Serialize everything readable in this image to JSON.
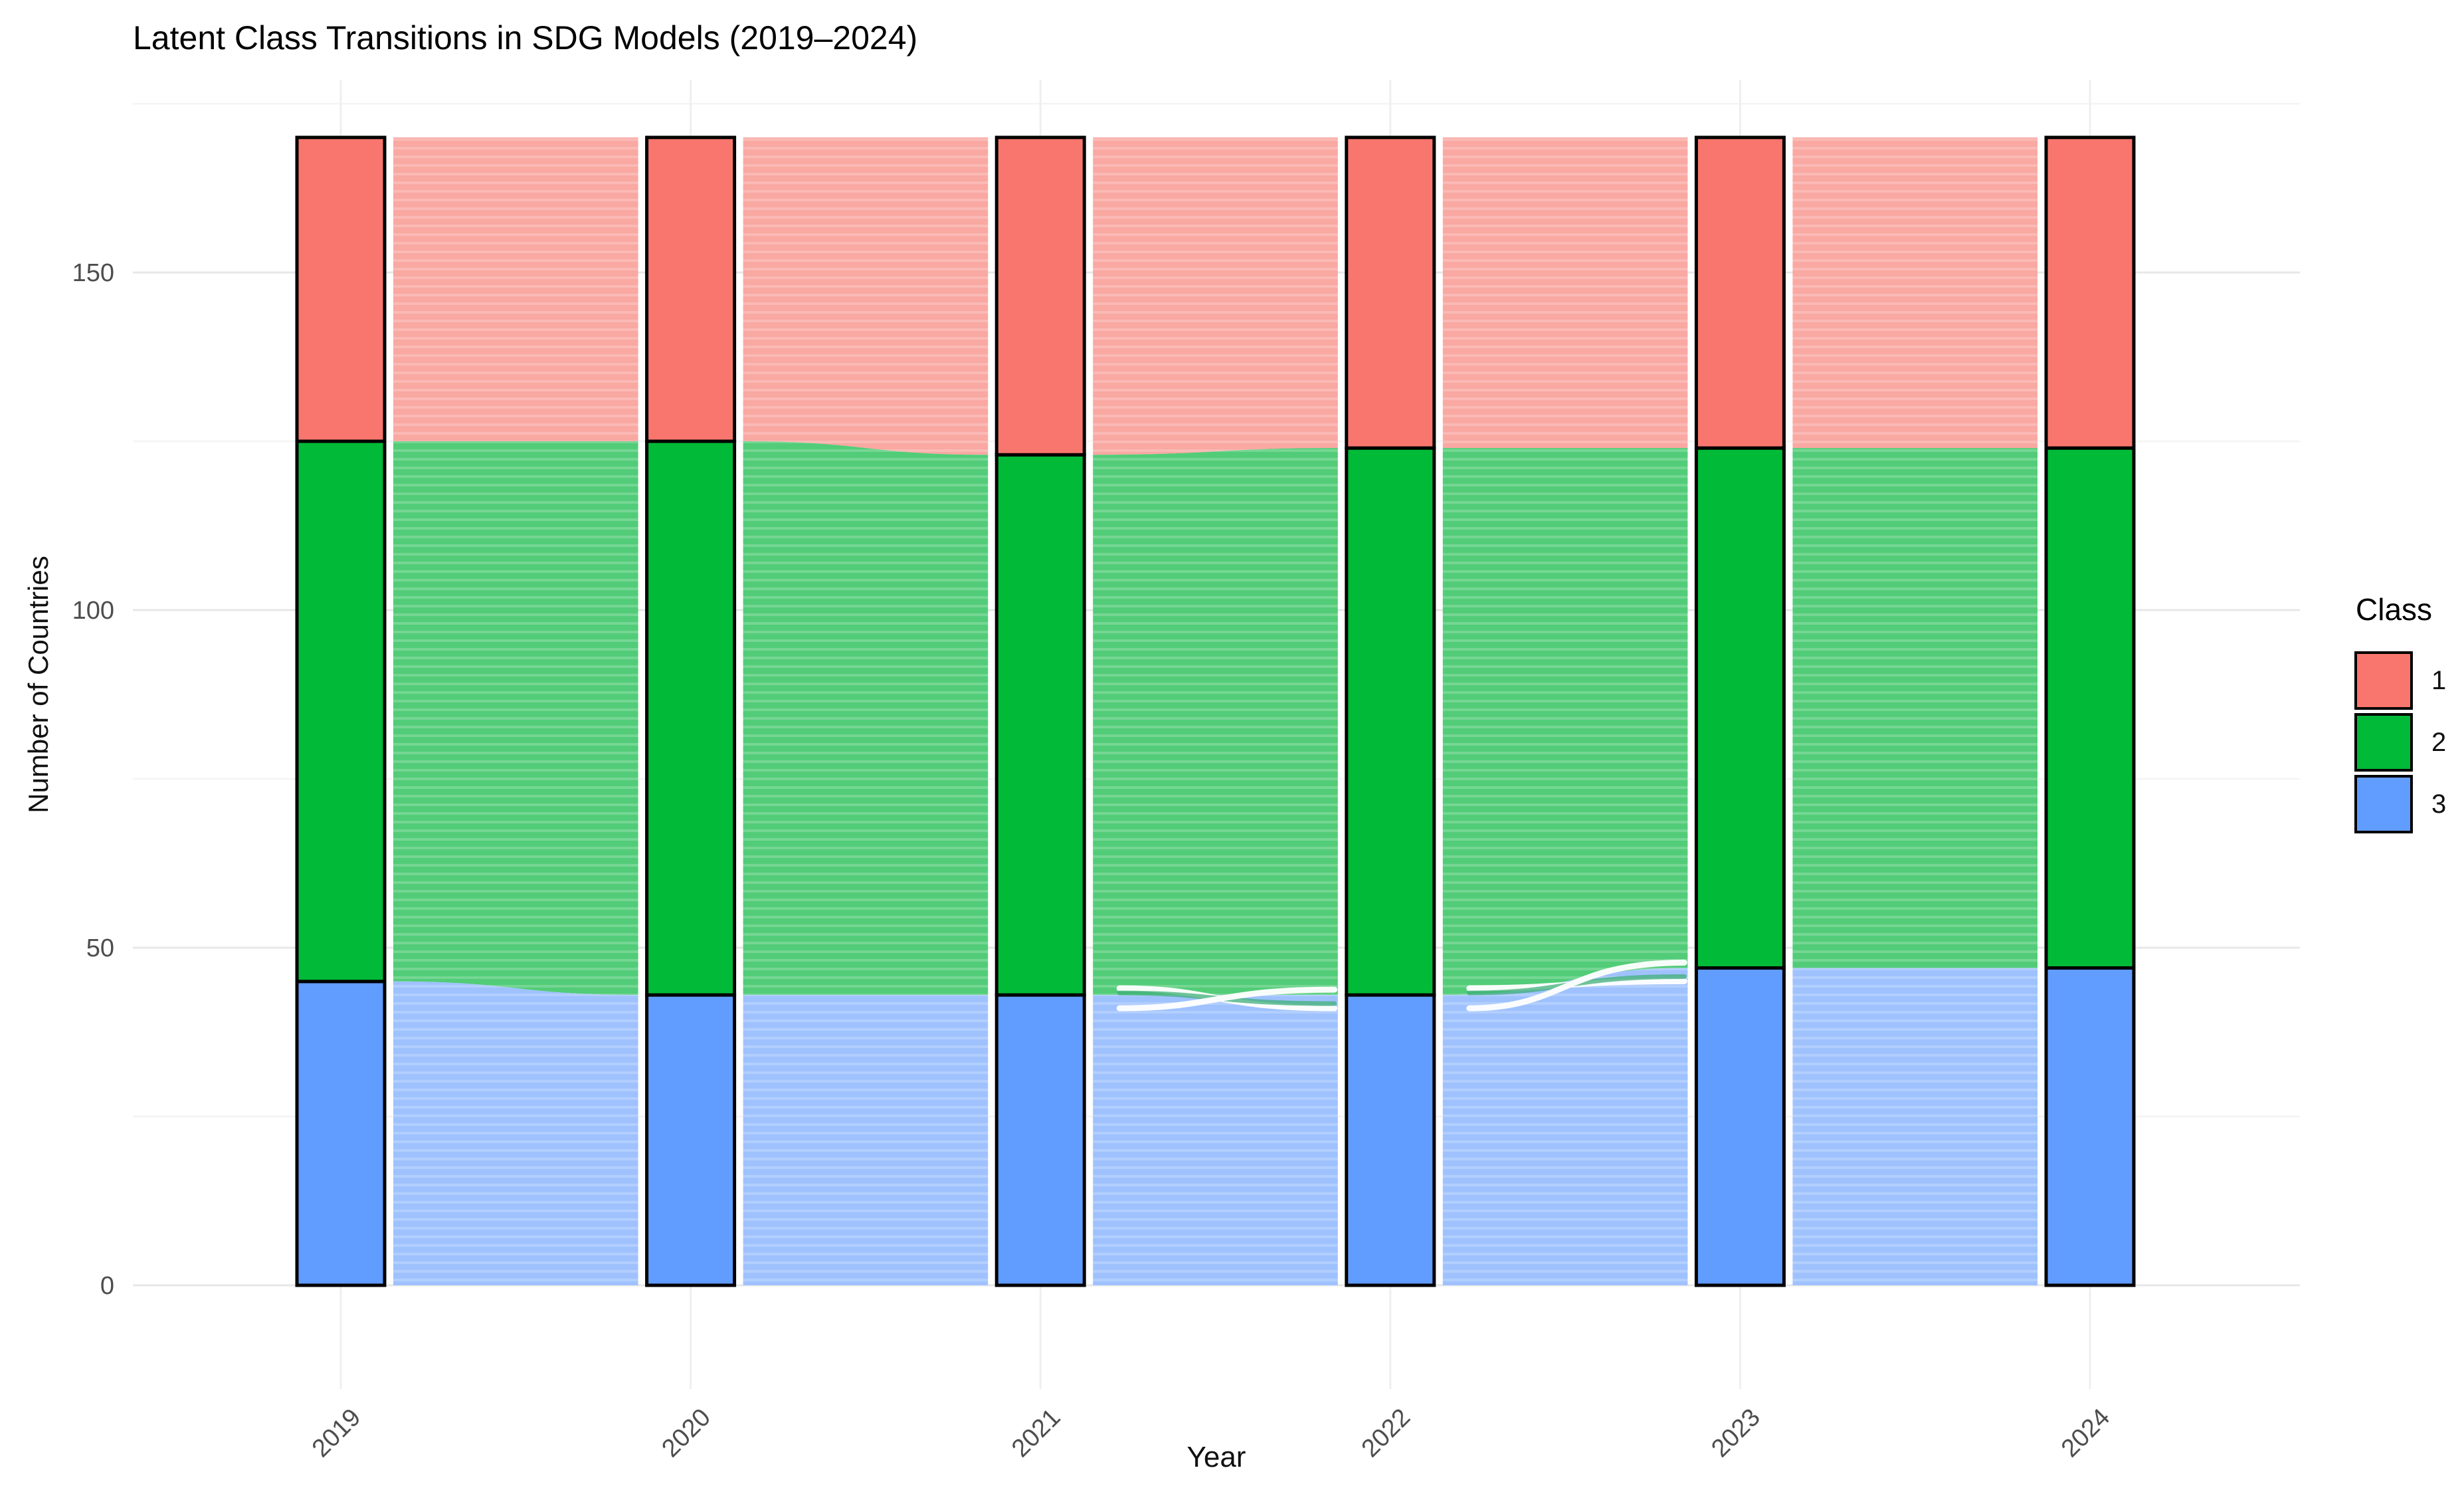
{
  "title": "Latent Class Transitions in SDG Models (2019–2024)",
  "axes": {
    "x_label": "Year",
    "y_label": "Number of Countries",
    "y_major_ticks": [
      0,
      50,
      100,
      150
    ],
    "y_minor_ticks": [
      25,
      75,
      125,
      175
    ]
  },
  "legend": {
    "title": "Class",
    "entries": [
      {
        "label": "1",
        "color": "#F8766D"
      },
      {
        "label": "2",
        "color": "#00BA38"
      },
      {
        "label": "3",
        "color": "#619CFF"
      }
    ]
  },
  "chart_data": {
    "type": "alluvial-stacked-bar",
    "title": "Latent Class Transitions in SDG Models (2019–2024)",
    "xlabel": "Year",
    "ylabel": "Number of Countries",
    "categories": [
      "2019",
      "2020",
      "2021",
      "2022",
      "2023",
      "2024"
    ],
    "total_per_year": [
      170,
      170,
      170,
      170,
      170,
      170
    ],
    "series": [
      {
        "name": "Class 1",
        "legend_label": "1",
        "color": "#F8766D",
        "flow_color": "#F9A8A2",
        "values": [
          45,
          45,
          47,
          46,
          46,
          46
        ]
      },
      {
        "name": "Class 2",
        "legend_label": "2",
        "color": "#00BA38",
        "flow_color": "#52CC78",
        "values": [
          80,
          82,
          80,
          81,
          77,
          77
        ]
      },
      {
        "name": "Class 3",
        "legend_label": "3",
        "color": "#619CFF",
        "flow_color": "#9FC2FE",
        "values": [
          45,
          43,
          43,
          43,
          47,
          47
        ]
      }
    ],
    "stack_order_bottom_to_top": [
      "Class 3",
      "Class 2",
      "Class 1"
    ],
    "class3_top_boundary": [
      45,
      43,
      43,
      43,
      47,
      47
    ],
    "class2_top_boundary": [
      125,
      125,
      123,
      124,
      124,
      124
    ],
    "crossing_flows_between": [
      "2021-2022",
      "2022-2023"
    ],
    "ylim": [
      0,
      175
    ],
    "grid": "major and minor horizontal, vertical at each year",
    "legend_position": "right",
    "colors": {
      "grid_major": "#E7E7E7",
      "grid_minor": "#F4F4F4",
      "tick_text": "#4D4D4D",
      "bar_outline": "#000000"
    }
  }
}
